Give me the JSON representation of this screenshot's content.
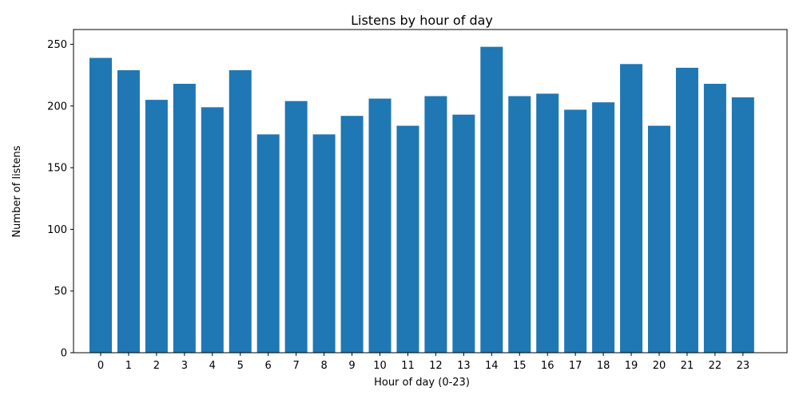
{
  "chart_data": {
    "type": "bar",
    "title": "Listens by hour of day",
    "xlabel": "Hour of day (0-23)",
    "ylabel": "Number of listens",
    "categories": [
      "0",
      "1",
      "2",
      "3",
      "4",
      "5",
      "6",
      "7",
      "8",
      "9",
      "10",
      "11",
      "12",
      "13",
      "14",
      "15",
      "16",
      "17",
      "18",
      "19",
      "20",
      "21",
      "22",
      "23"
    ],
    "values": [
      239,
      229,
      205,
      218,
      199,
      229,
      177,
      204,
      177,
      192,
      206,
      184,
      208,
      193,
      248,
      208,
      210,
      197,
      203,
      234,
      184,
      231,
      218,
      207
    ],
    "ylim": [
      0,
      262
    ],
    "yticks": [
      "0",
      "50",
      "100",
      "150",
      "200",
      "250"
    ],
    "grid": false,
    "bar_color": "#1f77b4"
  }
}
